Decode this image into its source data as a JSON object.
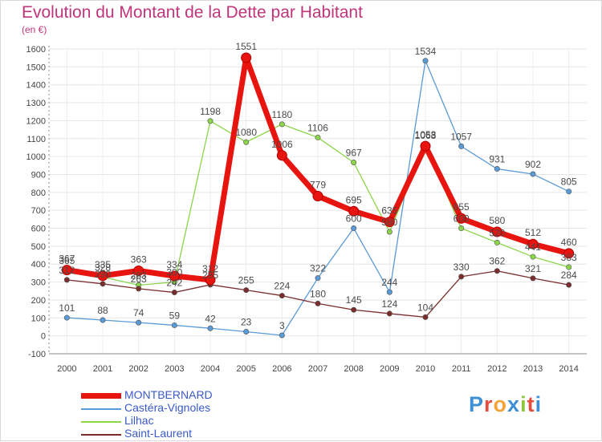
{
  "header": {
    "title": "Evolution du Montant de la Dette par Habitant",
    "subtitle": "(en €)"
  },
  "logo": {
    "text": "Proxiti",
    "colors": [
      "#3d8fd6",
      "#e84c3d",
      "#f2a33a",
      "#3d8fd6",
      "#8cc63f",
      "#e84c3d",
      "#3d8fd6"
    ]
  },
  "chart_data": {
    "type": "line",
    "title": "Evolution du Montant de la Dette par Habitant",
    "ylabel": "(en €)",
    "xlabel": "",
    "ylim": [
      -100,
      1600
    ],
    "yticks": [
      -100,
      0,
      100,
      200,
      300,
      400,
      500,
      600,
      700,
      800,
      900,
      1000,
      1100,
      1200,
      1300,
      1400,
      1500,
      1600
    ],
    "x": [
      "2000",
      "2001",
      "2002",
      "2003",
      "2004",
      "2005",
      "2006",
      "2007",
      "2008",
      "2009",
      "2010",
      "2011",
      "2012",
      "2013",
      "2014"
    ],
    "grid": true,
    "legend_position": "bottom-left",
    "series": [
      {
        "name": "Castéra-Vignoles",
        "color": "#5a9ad6",
        "values": [
          101,
          88,
          74,
          59,
          42,
          23,
          3,
          322,
          600,
          244,
          1534,
          1057,
          931,
          902,
          805
        ]
      },
      {
        "name": "Lilhac",
        "color": "#8cd44a",
        "values": [
          365,
          328,
          283,
          300,
          1198,
          1080,
          1180,
          1106,
          967,
          580,
          1063,
          600,
          520,
          441,
          383
        ]
      },
      {
        "name": "Saint-Laurent",
        "color": "#7a2d2d",
        "values": [
          312,
          290,
          263,
          242,
          285,
          255,
          224,
          180,
          145,
          124,
          104,
          330,
          362,
          321,
          284
        ]
      },
      {
        "name": "MONTBERNARD",
        "color": "#e8140f",
        "values": [
          367,
          335,
          363,
          334,
          312,
          1551,
          1006,
          779,
          695,
          635,
          1058,
          655,
          580,
          512,
          460
        ]
      }
    ],
    "legend_order": [
      "MONTBERNARD",
      "Castéra-Vignoles",
      "Lilhac",
      "Saint-Laurent"
    ]
  }
}
